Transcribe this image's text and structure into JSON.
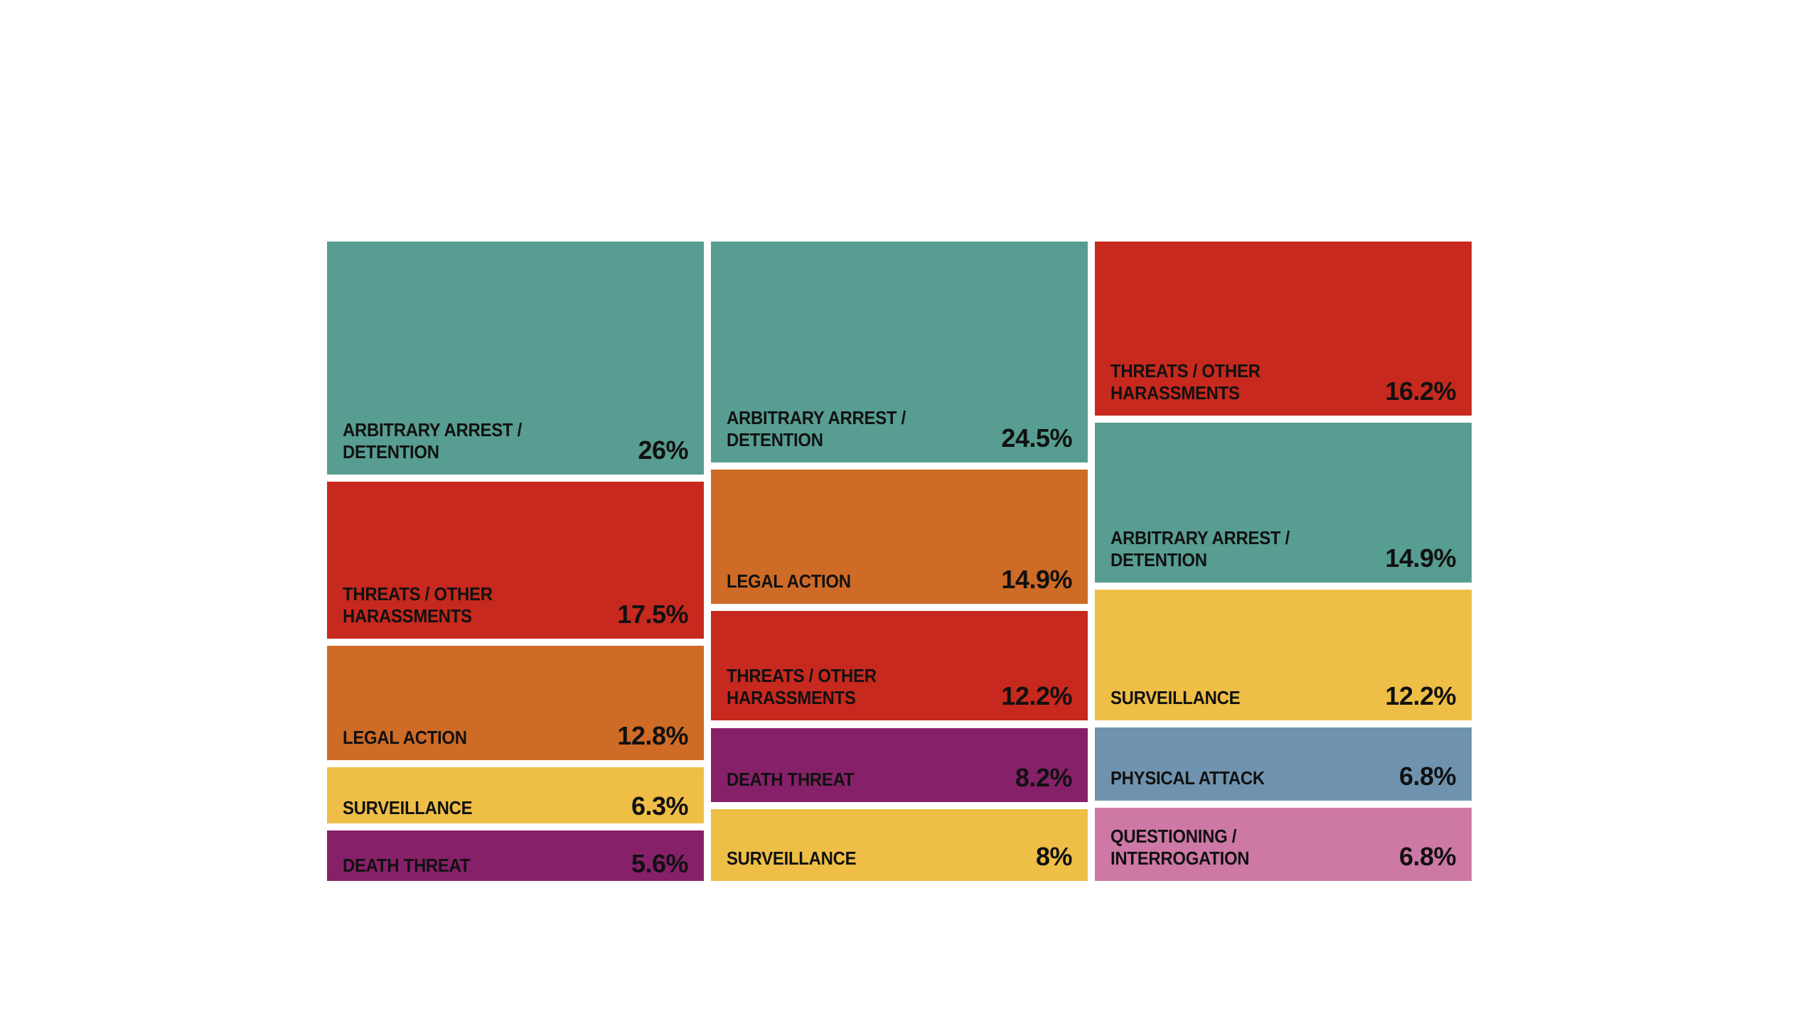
{
  "colors": {
    "arbitrary_arrest": "#579d91",
    "threats": "#c7291f",
    "legal_action": "#ce6b26",
    "surveillance": "#eebe46",
    "death_threat": "#862169",
    "physical_attack": "#6f93ae",
    "questioning": "#cd78a5"
  },
  "chart_data": {
    "type": "treemap",
    "title": "",
    "columns": [
      {
        "name": "",
        "cells": [
          {
            "label": "ARBITRARY ARREST / DETENTION",
            "value": 26,
            "value_label": "26%",
            "color_key": "arbitrary_arrest"
          },
          {
            "label": "THREATS / OTHER HARASSMENTS",
            "value": 17.5,
            "value_label": "17.5%",
            "color_key": "threats"
          },
          {
            "label": "LEGAL ACTION",
            "value": 12.8,
            "value_label": "12.8%",
            "color_key": "legal_action"
          },
          {
            "label": "SURVEILLANCE",
            "value": 6.3,
            "value_label": "6.3%",
            "color_key": "surveillance"
          },
          {
            "label": "DEATH THREAT",
            "value": 5.6,
            "value_label": "5.6%",
            "color_key": "death_threat"
          }
        ]
      },
      {
        "name": "",
        "cells": [
          {
            "label": "ARBITRARY ARREST / DETENTION",
            "value": 24.5,
            "value_label": "24.5%",
            "color_key": "arbitrary_arrest"
          },
          {
            "label": "LEGAL ACTION",
            "value": 14.9,
            "value_label": "14.9%",
            "color_key": "legal_action"
          },
          {
            "label": "THREATS / OTHER HARASSMENTS",
            "value": 12.2,
            "value_label": "12.2%",
            "color_key": "threats"
          },
          {
            "label": "DEATH THREAT",
            "value": 8.2,
            "value_label": "8.2%",
            "color_key": "death_threat"
          },
          {
            "label": "SURVEILLANCE",
            "value": 8,
            "value_label": "8%",
            "color_key": "surveillance"
          }
        ]
      },
      {
        "name": "",
        "cells": [
          {
            "label": "THREATS / OTHER HARASSMENTS",
            "value": 16.2,
            "value_label": "16.2%",
            "color_key": "threats"
          },
          {
            "label": "ARBITRARY ARREST / DETENTION",
            "value": 14.9,
            "value_label": "14.9%",
            "color_key": "arbitrary_arrest"
          },
          {
            "label": "SURVEILLANCE",
            "value": 12.2,
            "value_label": "12.2%",
            "color_key": "surveillance"
          },
          {
            "label": "PHYSICAL ATTACK",
            "value": 6.8,
            "value_label": "6.8%",
            "color_key": "physical_attack"
          },
          {
            "label": "QUESTIONING / INTERROGATION",
            "value": 6.8,
            "value_label": "6.8%",
            "color_key": "questioning"
          }
        ]
      }
    ]
  }
}
